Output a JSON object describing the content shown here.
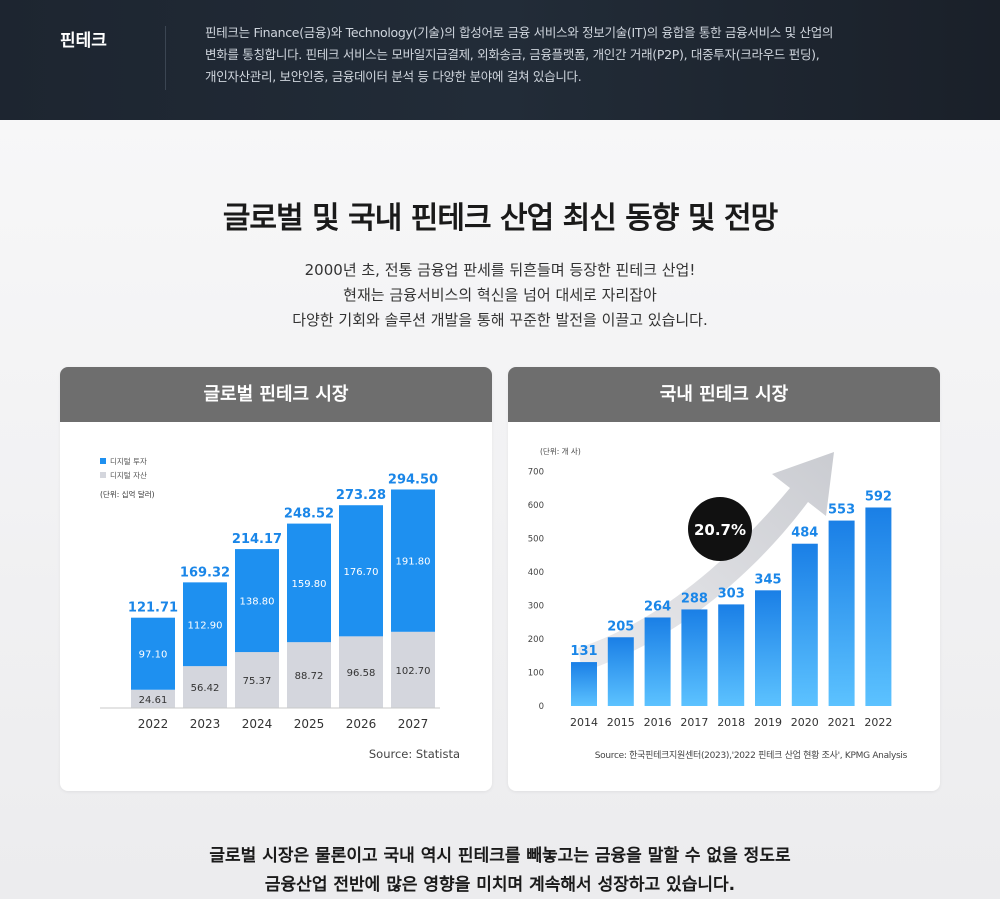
{
  "banner": {
    "term": "핀테크",
    "description_lines": [
      "핀테크는 Finance(금융)와 Technology(기술)의 합성어로 금융 서비스와 정보기술(IT)의 융합을 통한 금융서비스 및 산업의",
      "변화를 통칭합니다. 핀테크 서비스는 모바일지급결제, 외화송금, 금융플랫폼, 개인간 거래(P2P), 대중투자(크라우드 펀딩),",
      "개인자산관리, 보안인증, 금융데이터 분석 등 다양한 분야에 걸쳐 있습니다."
    ]
  },
  "headline": "글로벌 및 국내 핀테크 산업 최신 동향 및 전망",
  "intro_lines": [
    "2000년 초, 전통 금융업 판세를 뒤흔들며 등장한 핀테크 산업!",
    "현재는 금융서비스의 혁신을 넘어 대세로 자리잡아",
    "다양한 기회와 솔루션 개발을 통해 꾸준한 발전을 이끌고 있습니다."
  ],
  "global_card": {
    "title": "글로벌 핀테크 시장"
  },
  "domestic_card": {
    "title": "국내 핀테크 시장"
  },
  "closing_lines": [
    "글로벌 시장은 물론이고 국내 역시 핀테크를 빼놓고는 금융을 말할 수 없을 정도로",
    "금융산업 전반에 많은 영향을 미치며 계속해서 성장하고 있습니다."
  ],
  "chart_data": [
    {
      "type": "bar",
      "stacked": true,
      "categories": [
        "2022",
        "2023",
        "2024",
        "2025",
        "2026",
        "2027"
      ],
      "series": [
        {
          "name": "디지털 자산",
          "values": [
            24.61,
            56.42,
            75.37,
            88.72,
            96.58,
            102.7
          ],
          "color": "#d4d6dd"
        },
        {
          "name": "디지털 투자",
          "values": [
            97.1,
            112.9,
            138.8,
            159.8,
            176.7,
            191.8
          ],
          "color": "#1e90f0"
        }
      ],
      "totals": [
        121.71,
        169.32,
        214.17,
        248.52,
        273.28,
        294.5
      ],
      "unit_label": "(단위: 십억 달러)",
      "source": "Source: Statista",
      "legend_position": "top-left",
      "total_label_color": "#1a86e8"
    },
    {
      "type": "bar",
      "categories": [
        "2014",
        "2015",
        "2016",
        "2017",
        "2018",
        "2019",
        "2020",
        "2021",
        "2022"
      ],
      "values": [
        131,
        205,
        264,
        288,
        303,
        345,
        484,
        553,
        592
      ],
      "unit_label": "(단위: 개 사)",
      "yticks": [
        0,
        100,
        200,
        300,
        400,
        500,
        600,
        700
      ],
      "ylim": [
        0,
        700
      ],
      "grid": false,
      "growth_badge": "20.7%",
      "source": "Source: 한국핀테크지원센터(2023),'2022 핀테크 산업 현황 조사', KPMG Analysis",
      "bar_color_top": "#1a7fe6",
      "bar_color_bottom": "#5cc2ff",
      "value_label_color": "#1a86e8"
    }
  ]
}
